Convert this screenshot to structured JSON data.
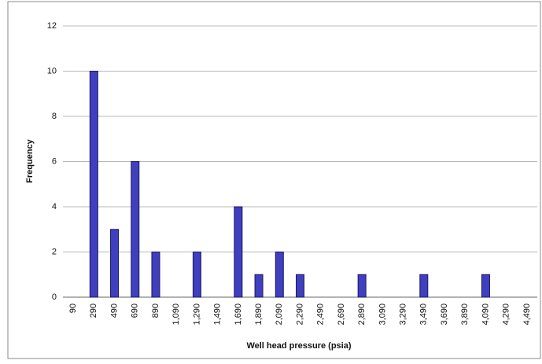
{
  "chart_data": {
    "type": "bar",
    "x_label": "Well head pressure (psia)",
    "y_label": "Frequency",
    "categories": [
      "90",
      "290",
      "490",
      "690",
      "890",
      "1,090",
      "1,290",
      "1,490",
      "1,690",
      "1,890",
      "2,090",
      "2,290",
      "2,490",
      "2,690",
      "2,890",
      "3,090",
      "3,290",
      "3,490",
      "3,690",
      "3,890",
      "4,090",
      "4,290",
      "4,490"
    ],
    "values": [
      0,
      10,
      3,
      6,
      2,
      0,
      2,
      0,
      4,
      1,
      2,
      1,
      0,
      0,
      1,
      0,
      0,
      1,
      0,
      0,
      1,
      0,
      0
    ],
    "color": "#3f3fc0",
    "ylim": [
      0,
      12
    ],
    "yticks": [
      0,
      2,
      4,
      6,
      8,
      10,
      12
    ],
    "grid": true
  }
}
